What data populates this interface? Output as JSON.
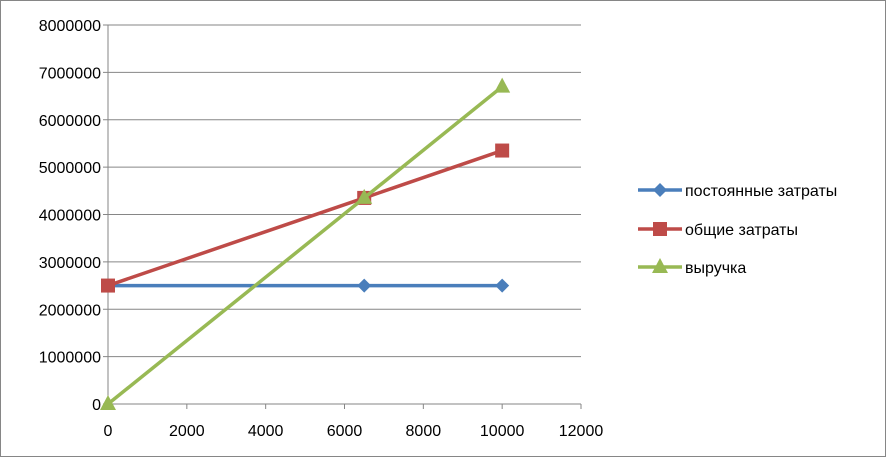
{
  "chart_data": {
    "type": "scatter",
    "mode": "lines+markers",
    "title": "",
    "xlabel": "",
    "ylabel": "",
    "xlim": [
      0,
      12000
    ],
    "ylim": [
      0,
      8000000
    ],
    "x_ticks": [
      0,
      2000,
      4000,
      6000,
      8000,
      10000,
      12000
    ],
    "y_ticks": [
      0,
      1000000,
      2000000,
      3000000,
      4000000,
      5000000,
      6000000,
      7000000,
      8000000
    ],
    "x_tick_labels": [
      "0",
      "2000",
      "4000",
      "6000",
      "8000",
      "10000",
      "12000"
    ],
    "y_tick_labels": [
      "0",
      "1000000",
      "2000000",
      "3000000",
      "4000000",
      "5000000",
      "6000000",
      "7000000",
      "8000000"
    ],
    "grid": "horizontal",
    "legend_position": "right",
    "series": [
      {
        "name": "постоянные затраты",
        "color": "#4A7EBB",
        "marker": "diamond",
        "x": [
          0,
          6500,
          10000
        ],
        "y": [
          2500000,
          2500000,
          2500000
        ]
      },
      {
        "name": "общие затраты",
        "color": "#BE4B48",
        "marker": "square",
        "x": [
          0,
          6500,
          10000
        ],
        "y": [
          2500000,
          4350000,
          5350000
        ]
      },
      {
        "name": "выручка",
        "color": "#98B954",
        "marker": "triangle",
        "x": [
          0,
          6500,
          10000
        ],
        "y": [
          0,
          4350000,
          6700000
        ]
      }
    ]
  }
}
